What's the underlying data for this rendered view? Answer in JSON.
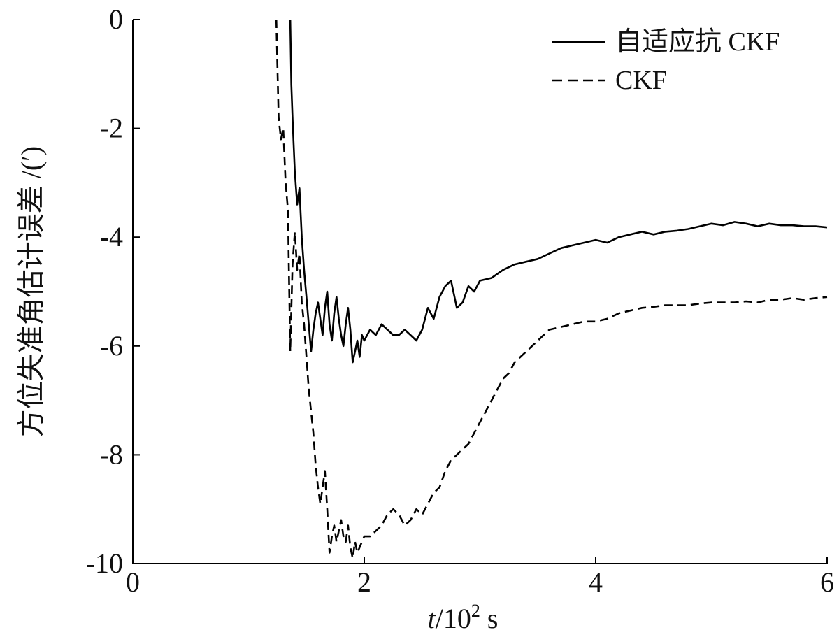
{
  "chart_data": {
    "type": "line",
    "xlabel_var": "t",
    "xlabel_unit_base": "/10",
    "xlabel_unit_exp": "2",
    "xlabel_unit_suffix": " s",
    "ylabel": "方位失准角估计误差 /(′)",
    "xlim": [
      0,
      6
    ],
    "ylim": [
      -10,
      0
    ],
    "x_ticks": [
      0,
      2,
      4,
      6
    ],
    "x_tick_labels": [
      "0",
      "2",
      "4",
      "6"
    ],
    "y_ticks": [
      0,
      -2,
      -4,
      -6,
      -8,
      -10
    ],
    "y_tick_labels": [
      "0",
      "-2",
      "-4",
      "-6",
      "-8",
      "-10"
    ],
    "grid": false,
    "legend_position": "top-right",
    "series": [
      {
        "name": "自适应抗 CKF",
        "style": "solid",
        "color": "#000000",
        "x": [
          1.36,
          1.37,
          1.38,
          1.39,
          1.4,
          1.42,
          1.44,
          1.46,
          1.48,
          1.5,
          1.52,
          1.54,
          1.56,
          1.58,
          1.6,
          1.62,
          1.64,
          1.66,
          1.68,
          1.7,
          1.72,
          1.74,
          1.76,
          1.78,
          1.8,
          1.82,
          1.84,
          1.86,
          1.88,
          1.9,
          1.92,
          1.94,
          1.96,
          1.98,
          2.0,
          2.05,
          2.1,
          2.15,
          2.2,
          2.25,
          2.3,
          2.35,
          2.4,
          2.45,
          2.5,
          2.55,
          2.6,
          2.65,
          2.7,
          2.75,
          2.8,
          2.85,
          2.9,
          2.95,
          3.0,
          3.1,
          3.2,
          3.3,
          3.4,
          3.5,
          3.6,
          3.7,
          3.8,
          3.9,
          4.0,
          4.1,
          4.2,
          4.3,
          4.4,
          4.5,
          4.6,
          4.7,
          4.8,
          4.9,
          5.0,
          5.1,
          5.2,
          5.3,
          5.4,
          5.5,
          5.6,
          5.7,
          5.8,
          5.9,
          6.0
        ],
        "y": [
          0.0,
          -1.2,
          -1.8,
          -2.3,
          -2.8,
          -3.4,
          -3.1,
          -4.0,
          -4.6,
          -5.1,
          -5.6,
          -6.1,
          -5.7,
          -5.4,
          -5.2,
          -5.5,
          -5.8,
          -5.3,
          -5.0,
          -5.6,
          -5.9,
          -5.4,
          -5.1,
          -5.5,
          -5.8,
          -6.0,
          -5.6,
          -5.3,
          -5.7,
          -6.3,
          -6.1,
          -5.9,
          -6.2,
          -5.8,
          -5.9,
          -5.7,
          -5.8,
          -5.6,
          -5.7,
          -5.8,
          -5.8,
          -5.7,
          -5.8,
          -5.9,
          -5.7,
          -5.3,
          -5.5,
          -5.1,
          -4.9,
          -4.8,
          -5.3,
          -5.2,
          -4.9,
          -5.0,
          -4.8,
          -4.75,
          -4.6,
          -4.5,
          -4.45,
          -4.4,
          -4.3,
          -4.2,
          -4.15,
          -4.1,
          -4.05,
          -4.1,
          -4.0,
          -3.95,
          -3.9,
          -3.95,
          -3.9,
          -3.88,
          -3.85,
          -3.8,
          -3.75,
          -3.78,
          -3.72,
          -3.75,
          -3.8,
          -3.75,
          -3.78,
          -3.78,
          -3.8,
          -3.8,
          -3.82
        ]
      },
      {
        "name": "CKF",
        "style": "dashed",
        "color": "#000000",
        "x": [
          1.24,
          1.26,
          1.28,
          1.3,
          1.32,
          1.34,
          1.36,
          1.38,
          1.4,
          1.42,
          1.44,
          1.46,
          1.48,
          1.5,
          1.52,
          1.54,
          1.56,
          1.58,
          1.6,
          1.62,
          1.64,
          1.66,
          1.68,
          1.7,
          1.72,
          1.74,
          1.76,
          1.78,
          1.8,
          1.82,
          1.84,
          1.86,
          1.88,
          1.9,
          1.92,
          1.94,
          1.96,
          1.98,
          2.0,
          2.05,
          2.1,
          2.15,
          2.2,
          2.25,
          2.3,
          2.35,
          2.4,
          2.45,
          2.5,
          2.55,
          2.6,
          2.65,
          2.7,
          2.75,
          2.8,
          2.85,
          2.9,
          2.95,
          3.0,
          3.05,
          3.1,
          3.15,
          3.2,
          3.25,
          3.3,
          3.35,
          3.4,
          3.45,
          3.5,
          3.55,
          3.6,
          3.7,
          3.8,
          3.9,
          4.0,
          4.1,
          4.2,
          4.3,
          4.4,
          4.5,
          4.6,
          4.7,
          4.8,
          4.9,
          5.0,
          5.1,
          5.2,
          5.3,
          5.4,
          5.5,
          5.6,
          5.7,
          5.8,
          5.9,
          6.0
        ],
        "y": [
          0.0,
          -1.8,
          -2.2,
          -2.0,
          -3.0,
          -3.5,
          -6.1,
          -4.5,
          -3.9,
          -4.6,
          -4.3,
          -5.2,
          -5.6,
          -6.2,
          -6.8,
          -7.2,
          -7.6,
          -8.2,
          -8.6,
          -8.9,
          -8.6,
          -8.3,
          -9.0,
          -9.8,
          -9.5,
          -9.3,
          -9.6,
          -9.4,
          -9.2,
          -9.5,
          -9.6,
          -9.3,
          -9.7,
          -9.9,
          -9.6,
          -9.8,
          -9.7,
          -9.6,
          -9.5,
          -9.5,
          -9.4,
          -9.3,
          -9.1,
          -9.0,
          -9.1,
          -9.3,
          -9.2,
          -9.0,
          -9.1,
          -8.9,
          -8.7,
          -8.6,
          -8.3,
          -8.1,
          -8.0,
          -7.9,
          -7.8,
          -7.6,
          -7.4,
          -7.2,
          -7.0,
          -6.8,
          -6.6,
          -6.5,
          -6.3,
          -6.2,
          -6.1,
          -6.0,
          -5.9,
          -5.8,
          -5.7,
          -5.65,
          -5.6,
          -5.55,
          -5.55,
          -5.5,
          -5.4,
          -5.35,
          -5.3,
          -5.28,
          -5.25,
          -5.25,
          -5.25,
          -5.22,
          -5.2,
          -5.2,
          -5.2,
          -5.18,
          -5.2,
          -5.15,
          -5.15,
          -5.12,
          -5.15,
          -5.12,
          -5.1
        ]
      }
    ]
  }
}
